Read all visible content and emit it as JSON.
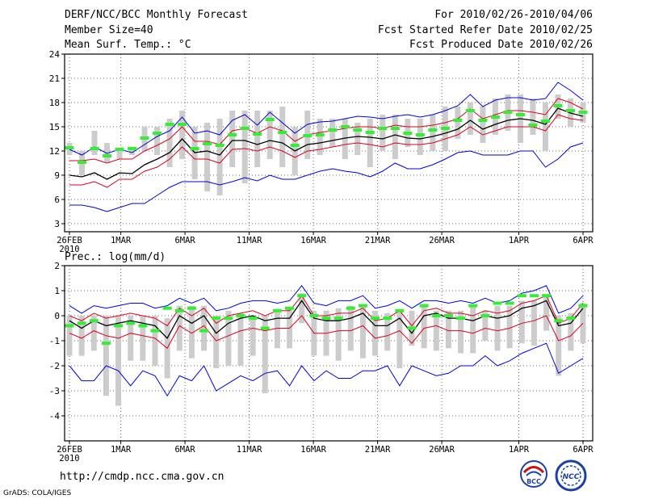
{
  "header": {
    "title": "DERF/NCC/BCC Monthly Forecast",
    "member_size": "Member Size=40",
    "variable": "Mean Surf. Temp.: °C",
    "period": "For 2010/02/26-2010/04/06",
    "started": "Fcst Started Refer Date 2010/02/25",
    "produced": "Fcst Produced Date 2010/02/26"
  },
  "footer": {
    "url": "http://cmdp.ncc.cma.gov.cn",
    "credit": "GrADS: COLA/IGES",
    "logo_left_text": "BCC",
    "logo_right_text": "NCC"
  },
  "colors": {
    "max_min": "#0000dd",
    "pct": "#dd0020",
    "mean": "#000000",
    "box": "#cccccc",
    "clim": "#33ee33",
    "grid": "#666666"
  },
  "chart_data": [
    {
      "type": "box-ensemble",
      "title": "Mean Surf. Temp.: °C",
      "ylim": [
        2,
        24
      ],
      "yticks": [
        3,
        6,
        9,
        12,
        15,
        18,
        21,
        24
      ],
      "x_range": [
        0,
        40
      ],
      "xticks": [
        {
          "x": 0,
          "label": "26FEB",
          "sub": "2010"
        },
        {
          "x": 4,
          "label": "1MAR"
        },
        {
          "x": 9,
          "label": "6MAR"
        },
        {
          "x": 14,
          "label": "11MAR"
        },
        {
          "x": 19,
          "label": "16MAR"
        },
        {
          "x": 24,
          "label": "21MAR"
        },
        {
          "x": 29,
          "label": "26MAR"
        },
        {
          "x": 35,
          "label": "1APR"
        },
        {
          "x": 40,
          "label": "6APR"
        }
      ],
      "series": [
        {
          "name": "max",
          "values": [
            12.2,
            11.5,
            12.5,
            11.7,
            12.2,
            11.8,
            12.8,
            13.8,
            14.5,
            16.2,
            14.2,
            14.5,
            14.0,
            15.8,
            16.5,
            15.2,
            16.8,
            15.5,
            14.2,
            15.3,
            15.6,
            15.7,
            16.0,
            16.3,
            16.2,
            16.0,
            16.3,
            16.5,
            16.2,
            16.5,
            17.0,
            17.6,
            19.0,
            17.5,
            18.3,
            18.6,
            18.6,
            18.3,
            18.5,
            20.5,
            19.5,
            18.3
          ]
        },
        {
          "name": "p90",
          "values": [
            10.8,
            10.8,
            11.0,
            10.5,
            11.0,
            11.0,
            12.0,
            12.7,
            13.5,
            15.0,
            13.2,
            13.2,
            12.8,
            14.5,
            14.8,
            14.2,
            15.0,
            14.5,
            13.2,
            14.0,
            14.3,
            14.5,
            14.8,
            15.0,
            15.0,
            14.8,
            15.2,
            15.0,
            15.0,
            15.2,
            15.5,
            16.0,
            17.2,
            16.0,
            16.5,
            17.0,
            17.0,
            16.8,
            16.5,
            18.5,
            18.0,
            17.2
          ]
        },
        {
          "name": "mean",
          "values": [
            9.0,
            8.8,
            9.3,
            8.5,
            9.3,
            9.2,
            10.3,
            11.0,
            11.8,
            13.5,
            11.8,
            12.0,
            11.5,
            13.3,
            13.3,
            12.8,
            13.3,
            13.0,
            12.0,
            12.8,
            13.0,
            13.3,
            13.6,
            13.8,
            13.7,
            13.5,
            14.0,
            13.6,
            13.5,
            13.8,
            14.2,
            14.7,
            15.8,
            14.7,
            15.3,
            15.8,
            16.0,
            15.8,
            15.3,
            17.3,
            16.7,
            16.3
          ]
        },
        {
          "name": "p10",
          "values": [
            7.8,
            7.8,
            8.2,
            7.5,
            8.5,
            8.5,
            9.5,
            10.0,
            11.0,
            12.5,
            11.0,
            11.0,
            10.5,
            12.2,
            12.3,
            12.0,
            12.5,
            12.0,
            11.2,
            12.0,
            12.2,
            12.5,
            12.8,
            13.0,
            12.8,
            12.5,
            13.0,
            12.8,
            12.8,
            13.0,
            13.5,
            14.0,
            15.0,
            14.0,
            14.5,
            15.0,
            15.0,
            15.0,
            14.5,
            16.5,
            16.0,
            15.8
          ]
        },
        {
          "name": "min",
          "values": [
            5.3,
            5.3,
            5.0,
            4.5,
            5.0,
            5.5,
            5.5,
            6.5,
            7.5,
            8.2,
            8.2,
            8.2,
            7.8,
            8.2,
            8.7,
            8.3,
            9.0,
            8.5,
            8.5,
            9.0,
            9.5,
            9.8,
            9.5,
            9.3,
            8.8,
            9.5,
            10.5,
            9.8,
            9.8,
            10.3,
            11.0,
            11.8,
            12.0,
            11.5,
            11.5,
            11.5,
            12.0,
            12.0,
            10.0,
            11.0,
            12.5,
            13.0
          ]
        },
        {
          "name": "clim",
          "values": [
            12.4,
            10.6,
            12.3,
            11.4,
            12.2,
            12.3,
            13.6,
            14.2,
            15.3,
            15.3,
            12.3,
            12.9,
            12.7,
            14.0,
            14.8,
            14.1,
            15.9,
            14.3,
            12.7,
            13.9,
            14.0,
            14.6,
            15.0,
            14.6,
            14.3,
            14.8,
            14.8,
            14.2,
            14.0,
            14.6,
            14.8,
            15.8,
            17.0,
            15.8,
            16.2,
            16.8,
            16.5,
            15.2,
            15.7,
            17.6,
            17.0,
            16.8
          ]
        },
        {
          "name": "box_high",
          "values": [
            13.0,
            12.0,
            14.5,
            13.0,
            12.3,
            12.5,
            15.0,
            15.0,
            16.0,
            17.0,
            15.0,
            15.5,
            16.0,
            17.0,
            17.0,
            17.0,
            17.0,
            17.5,
            15.0,
            17.0,
            16.0,
            16.0,
            16.0,
            15.5,
            16.0,
            16.5,
            16.5,
            16.0,
            16.0,
            16.5,
            17.5,
            17.5,
            18.0,
            17.5,
            18.5,
            19.0,
            19.0,
            18.5,
            18.0,
            19.0,
            18.5,
            18.0
          ]
        },
        {
          "name": "box_low",
          "values": [
            11.5,
            9.0,
            11.5,
            10.5,
            11.0,
            11.5,
            12.0,
            11.5,
            10.0,
            11.0,
            8.5,
            7.0,
            6.5,
            10.0,
            8.0,
            10.0,
            11.0,
            10.0,
            9.0,
            11.0,
            11.5,
            12.5,
            11.0,
            11.5,
            10.0,
            12.0,
            11.0,
            12.5,
            11.5,
            12.0,
            12.0,
            13.5,
            14.0,
            13.0,
            14.0,
            14.5,
            13.0,
            14.0,
            12.0,
            16.0,
            15.0,
            15.5
          ]
        }
      ]
    },
    {
      "type": "box-ensemble",
      "title": "Prec.: log(mm/d)",
      "ylim": [
        -5,
        2
      ],
      "yticks": [
        -4,
        -3,
        -2,
        -1,
        0,
        1,
        2
      ],
      "x_range": [
        0,
        40
      ],
      "xticks": [
        {
          "x": 0,
          "label": "26FEB",
          "sub": "2010"
        },
        {
          "x": 4,
          "label": "1MAR"
        },
        {
          "x": 9,
          "label": "6MAR"
        },
        {
          "x": 14,
          "label": "11MAR"
        },
        {
          "x": 19,
          "label": "16MAR"
        },
        {
          "x": 24,
          "label": "21MAR"
        },
        {
          "x": 29,
          "label": "26MAR"
        },
        {
          "x": 35,
          "label": "1APR"
        },
        {
          "x": 40,
          "label": "6APR"
        }
      ],
      "series": [
        {
          "name": "max",
          "values": [
            0.4,
            0.1,
            0.4,
            0.3,
            0.4,
            0.5,
            0.5,
            0.3,
            0.4,
            0.7,
            0.5,
            0.7,
            0.2,
            0.3,
            0.5,
            0.6,
            0.6,
            0.5,
            0.6,
            1.2,
            0.5,
            0.4,
            0.6,
            0.6,
            0.8,
            0.3,
            0.4,
            0.6,
            0.3,
            0.6,
            0.6,
            0.5,
            0.6,
            0.5,
            0.7,
            0.5,
            0.6,
            0.9,
            1.0,
            1.2,
            0.1,
            0.3,
            0.8
          ]
        },
        {
          "name": "p90",
          "values": [
            0.0,
            -0.2,
            0.1,
            -0.1,
            0.0,
            0.1,
            0.0,
            -0.1,
            -0.4,
            0.3,
            0.0,
            0.3,
            -0.3,
            0.0,
            0.1,
            0.2,
            0.0,
            0.2,
            0.2,
            0.8,
            0.0,
            0.0,
            0.1,
            0.1,
            0.3,
            -0.2,
            -0.1,
            0.2,
            -0.4,
            0.2,
            0.3,
            0.1,
            0.1,
            0.0,
            0.2,
            0.1,
            0.2,
            0.5,
            0.6,
            0.8,
            -0.3,
            -0.1,
            0.5
          ]
        },
        {
          "name": "mean",
          "values": [
            -0.2,
            -0.5,
            -0.2,
            -0.4,
            -0.3,
            -0.2,
            -0.3,
            -0.4,
            -0.9,
            0.0,
            -0.3,
            0.0,
            -0.7,
            -0.3,
            -0.1,
            0.0,
            -0.2,
            -0.1,
            -0.1,
            0.6,
            -0.1,
            -0.2,
            -0.2,
            -0.1,
            0.1,
            -0.4,
            -0.4,
            -0.1,
            -0.7,
            0.0,
            0.1,
            -0.1,
            -0.1,
            -0.2,
            0.0,
            -0.1,
            0.0,
            0.3,
            0.4,
            0.6,
            -0.4,
            -0.3,
            0.3
          ]
        },
        {
          "name": "p10",
          "values": [
            -0.7,
            -0.9,
            -0.6,
            -0.8,
            -0.9,
            -0.7,
            -0.8,
            -0.9,
            -1.3,
            -0.4,
            -0.7,
            -0.4,
            -1.0,
            -0.8,
            -0.6,
            -0.5,
            -0.6,
            -0.5,
            -0.5,
            0.0,
            -0.7,
            -0.7,
            -0.6,
            -0.6,
            -0.4,
            -0.9,
            -0.8,
            -0.6,
            -1.1,
            -0.5,
            -0.4,
            -0.6,
            -0.6,
            -0.7,
            -0.5,
            -0.6,
            -0.5,
            -0.3,
            -0.2,
            0.0,
            -1.0,
            -0.8,
            -0.3
          ]
        },
        {
          "name": "min",
          "values": [
            -2.0,
            -2.6,
            -2.6,
            -2.0,
            -2.2,
            -2.8,
            -2.2,
            -2.4,
            -3.2,
            -2.4,
            -2.6,
            -2.0,
            -3.0,
            -2.7,
            -2.4,
            -2.6,
            -2.3,
            -2.2,
            -2.8,
            -2.0,
            -2.6,
            -2.2,
            -2.5,
            -2.5,
            -2.2,
            -2.2,
            -2.0,
            -2.8,
            -2.0,
            -2.2,
            -2.4,
            -2.3,
            -2.0,
            -2.0,
            -1.6,
            -2.0,
            -1.8,
            -1.5,
            -1.3,
            -1.1,
            -2.3,
            -2.0,
            -1.7
          ]
        },
        {
          "name": "clim",
          "values": [
            -0.4,
            -0.3,
            -0.2,
            -1.1,
            -0.4,
            -0.3,
            -0.4,
            -0.6,
            0.3,
            0.2,
            0.3,
            -0.6,
            -0.1,
            -0.1,
            0.0,
            -0.1,
            -0.5,
            0.2,
            0.3,
            0.8,
            0.0,
            -0.1,
            -0.1,
            0.3,
            0.4,
            -0.1,
            -0.1,
            0.2,
            -0.5,
            0.4,
            0.0,
            0.0,
            -0.1,
            0.4,
            0.0,
            0.5,
            0.5,
            0.8,
            0.8,
            0.8,
            -0.2,
            -0.1,
            0.4
          ]
        },
        {
          "name": "box_high",
          "values": [
            0.0,
            0.0,
            0.0,
            0.0,
            0.0,
            0.0,
            0.0,
            0.0,
            -0.1,
            0.4,
            0.4,
            0.4,
            0.0,
            0.2,
            0.1,
            0.0,
            0.0,
            0.2,
            0.3,
            0.9,
            0.2,
            0.2,
            0.3,
            0.4,
            0.4,
            0.2,
            0.1,
            0.2,
            0.2,
            0.4,
            0.2,
            0.2,
            0.2,
            0.4,
            0.2,
            0.4,
            0.4,
            0.6,
            0.6,
            0.8,
            0.0,
            0.1,
            0.5
          ]
        },
        {
          "name": "box_low",
          "values": [
            -1.6,
            -1.6,
            -1.4,
            -3.2,
            -3.6,
            -1.8,
            -1.8,
            -2.0,
            -2.5,
            -1.4,
            -1.7,
            -1.4,
            -2.1,
            -2.0,
            -2.0,
            -1.6,
            -3.1,
            -1.3,
            -1.3,
            -0.3,
            -1.6,
            -1.6,
            -1.8,
            -1.4,
            -1.7,
            -1.6,
            -1.4,
            -2.1,
            -1.2,
            -1.3,
            -1.4,
            -1.3,
            -1.5,
            -1.5,
            -1.0,
            -1.4,
            -1.3,
            -1.1,
            -1.2,
            -0.6,
            -2.4,
            -1.4,
            -1.1
          ]
        }
      ]
    }
  ]
}
